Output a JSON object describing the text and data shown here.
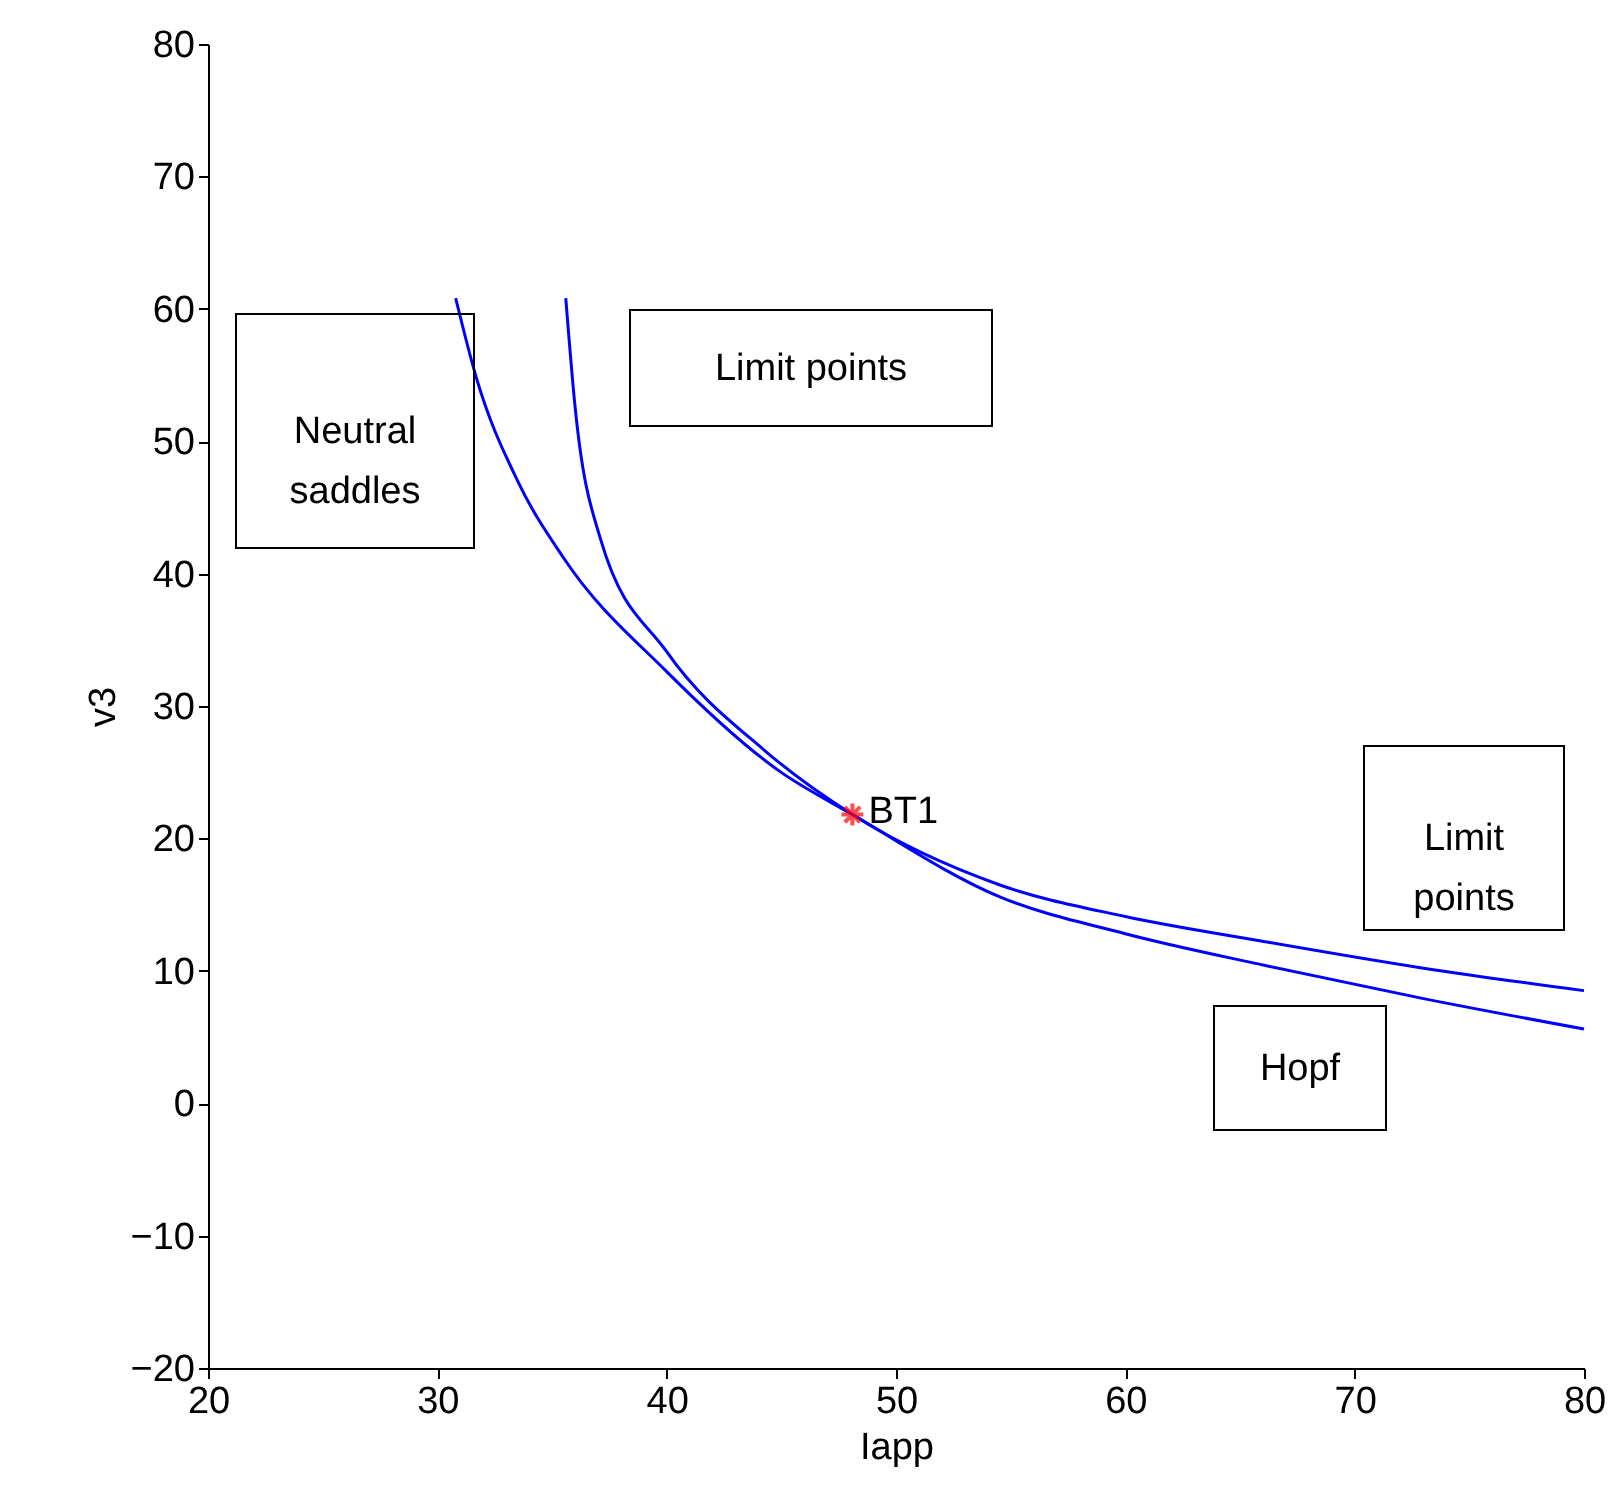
{
  "chart_data": {
    "type": "line",
    "xlabel": "Iapp",
    "ylabel": "v3",
    "xlim": [
      20,
      80
    ],
    "ylim": [
      -20,
      80
    ],
    "xticks": [
      20,
      30,
      40,
      50,
      60,
      70,
      80
    ],
    "yticks": [
      -20,
      -10,
      0,
      10,
      20,
      30,
      40,
      50,
      60,
      70,
      80
    ],
    "grid": false,
    "series": [
      {
        "color": "#0000ff",
        "line_style": "solid",
        "x": [
          30.8,
          31.7,
          33.5,
          35.5,
          40.0,
          44.9,
          48.1,
          54.5,
          60.0,
          66.1,
          73.0,
          80.0
        ],
        "values": [
          60.8,
          54.8,
          47.0,
          41.2,
          32.6,
          25.1,
          21.8,
          15.6,
          12.8,
          10.4,
          7.9,
          5.6
        ]
      },
      {
        "color": "#0000ff",
        "line_style": "solid",
        "x": [
          35.6,
          36.0,
          37.1,
          40.0,
          44.3,
          48.1,
          54.5,
          60.0,
          66.1,
          73.0,
          80.0
        ],
        "values": [
          60.8,
          52.7,
          42.7,
          34.1,
          26.6,
          21.8,
          16.5,
          14.1,
          12.2,
          10.2,
          8.5
        ]
      },
      {
        "type": "scatter",
        "marker": "cross",
        "color": "#ff0000",
        "x": [
          48.1
        ],
        "values": [
          21.8
        ]
      }
    ],
    "annotations": [
      {
        "text": "BT1",
        "x": 48.1,
        "y": 21.8
      },
      "Neutral\nsaddles",
      "Limit points",
      "Limit\npoints",
      "Hopf"
    ]
  }
}
